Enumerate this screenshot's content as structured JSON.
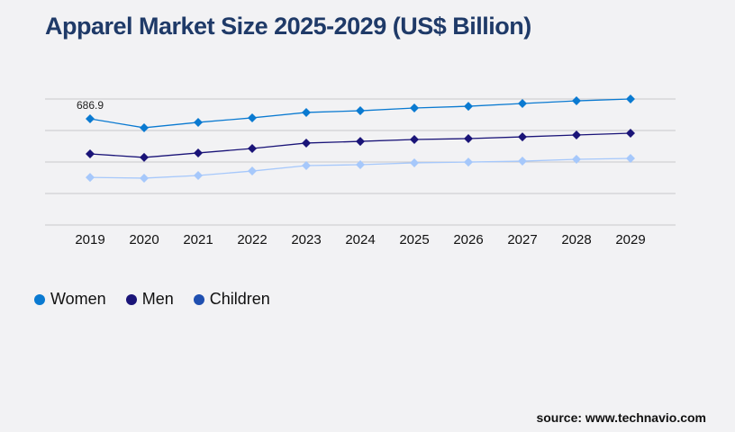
{
  "title": "Apparel Market Size 2025-2029 (US$ Billion)",
  "source": "source: www.technavio.com",
  "chart_data": {
    "type": "line",
    "title": "Apparel Market Size 2025-2029 (US$ Billion)",
    "categories": [
      "2019",
      "2020",
      "2021",
      "2022",
      "2023",
      "2024",
      "2025",
      "2026",
      "2027",
      "2028",
      "2029"
    ],
    "ylim": [
      0,
      815
    ],
    "grid": true,
    "legend": "bottom-left",
    "annotations": [
      {
        "series": "Women",
        "category": "2019",
        "text": "686.9"
      }
    ],
    "series": [
      {
        "name": "Women",
        "color": "#0a7ad1",
        "values": [
          686.9,
          629,
          664,
          693,
          728,
          739,
          757,
          768,
          786,
          803,
          815
        ]
      },
      {
        "name": "Men",
        "color": "#1a1478",
        "values": [
          460,
          437,
          466,
          495,
          530,
          541,
          553,
          559,
          570,
          582,
          594
        ]
      },
      {
        "name": "Children",
        "color": "#a6c8fb",
        "legend_color": "#1f4fb0",
        "values": [
          308,
          303,
          320,
          349,
          384,
          390,
          402,
          407,
          413,
          425,
          431
        ]
      }
    ]
  }
}
